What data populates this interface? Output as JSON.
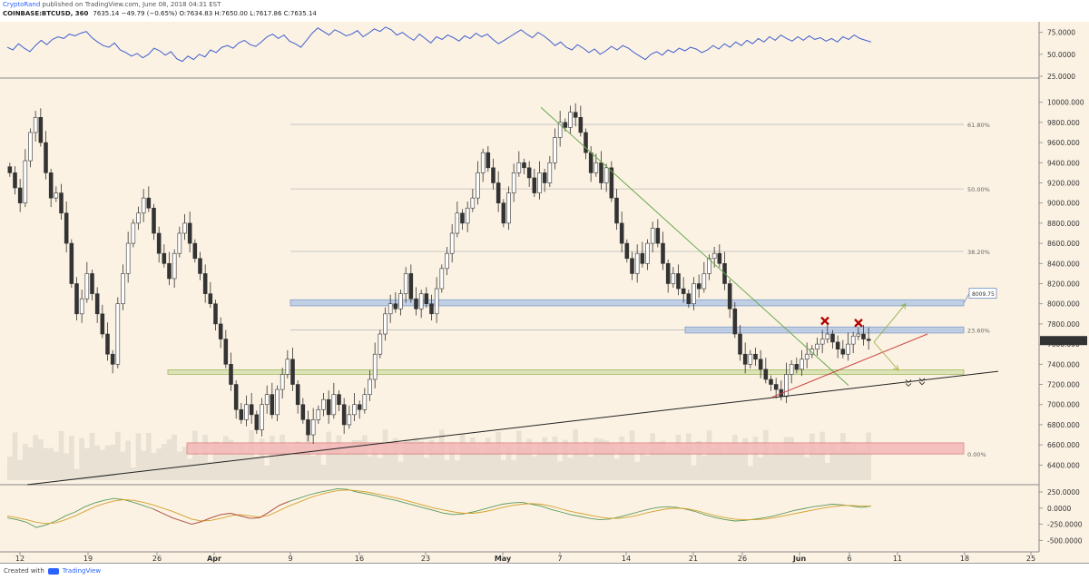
{
  "header": {
    "line1_user": "CryptoRand",
    "line1_rest": "published on TradingView.com, June 08, 2018 04:31 EST",
    "symbol": "COINBASE:BTCUSD, 360",
    "ohlc": "7635.14  −49.79 (−0.65%)  O:7634.83  H:7650.00  L:7617.86  C:7635.14"
  },
  "footer": {
    "created_with": "Created with",
    "brand": "TradingView"
  },
  "colors": {
    "background": "#fbf2e3",
    "rsi_line": "#3f5fcf",
    "candle": "#333333",
    "resistance_zone": "#b8c9e6",
    "support_zone_green": "#d9e0b0",
    "support_zone_red": "#f3b8b8",
    "downtrend_line": "#6aa84f",
    "uptrend_red": "#cc4444",
    "long_trend_black": "#222222",
    "x_marker": "#b40000"
  },
  "chart_data": [
    {
      "panel": "rsi",
      "type": "line",
      "ylim": [
        25,
        85
      ],
      "ticks": [
        "75.0000",
        "50.0000",
        "25.0000"
      ],
      "tick_values": [
        75,
        50,
        25
      ],
      "values": [
        58,
        55,
        62,
        57,
        53,
        60,
        66,
        61,
        67,
        70,
        68,
        73,
        71,
        74,
        76,
        69,
        64,
        60,
        58,
        63,
        55,
        52,
        48,
        51,
        46,
        50,
        57,
        54,
        49,
        53,
        45,
        42,
        48,
        44,
        50,
        47,
        55,
        52,
        58,
        60,
        57,
        63,
        66,
        61,
        59,
        64,
        70,
        73,
        68,
        72,
        65,
        62,
        58,
        66,
        74,
        80,
        76,
        72,
        78,
        75,
        71,
        73,
        77,
        70,
        74,
        79,
        76,
        81,
        78,
        72,
        75,
        70,
        66,
        73,
        68,
        63,
        70,
        67,
        72,
        69,
        65,
        71,
        68,
        74,
        70,
        73,
        67,
        62,
        66,
        70,
        74,
        78,
        73,
        69,
        75,
        71,
        66,
        60,
        64,
        58,
        55,
        61,
        57,
        52,
        56,
        50,
        54,
        59,
        55,
        60,
        57,
        52,
        48,
        44,
        50,
        53,
        49,
        55,
        52,
        57,
        54,
        58,
        56,
        52,
        55,
        60,
        56,
        62,
        58,
        64,
        60,
        66,
        62,
        68,
        64,
        70,
        66,
        72,
        68,
        65,
        70,
        66,
        71,
        67,
        69,
        65,
        68,
        64,
        70,
        67,
        72,
        68,
        66,
        64
      ],
      "x_labels": [
        "12",
        "19",
        "26",
        "Apr",
        "9",
        "16",
        "23",
        "May",
        "7",
        "14",
        "21",
        "26",
        "Jun",
        "6",
        "11",
        "18",
        "25"
      ]
    },
    {
      "panel": "price",
      "type": "candlestick",
      "ylim": [
        6250,
        10150
      ],
      "ticks": [
        "10000.000",
        "9800.000",
        "9600.000",
        "9400.000",
        "9200.000",
        "9000.000",
        "8800.000",
        "8600.000",
        "8400.000",
        "8200.000",
        "8000.000",
        "7800.000",
        "7600.000",
        "7400.000",
        "7200.000",
        "7000.000",
        "6800.000",
        "6600.000",
        "6400.000"
      ],
      "tick_values": [
        10000,
        9800,
        9600,
        9400,
        9200,
        9000,
        8800,
        8600,
        8400,
        8200,
        8000,
        7800,
        7600,
        7400,
        7200,
        7000,
        6800,
        6600,
        6400
      ],
      "closes": [
        9300,
        9150,
        9000,
        9420,
        9700,
        9850,
        9600,
        9300,
        9050,
        9100,
        8900,
        8600,
        8200,
        7900,
        8050,
        8300,
        8100,
        7900,
        7700,
        7500,
        7400,
        8000,
        8300,
        8600,
        8800,
        8900,
        9050,
        8950,
        8700,
        8500,
        8400,
        8250,
        8500,
        8700,
        8800,
        8600,
        8450,
        8300,
        8100,
        8000,
        7800,
        7650,
        7400,
        7200,
        6950,
        6850,
        7000,
        6900,
        6750,
        7000,
        7100,
        6900,
        7150,
        7300,
        7450,
        7200,
        7000,
        6850,
        6700,
        6850,
        6950,
        7050,
        6900,
        7100,
        7000,
        6800,
        6900,
        7000,
        6950,
        7100,
        7250,
        7500,
        7700,
        7900,
        8000,
        7950,
        8100,
        8300,
        8050,
        7950,
        8100,
        8000,
        7900,
        8150,
        8350,
        8500,
        8700,
        8900,
        8800,
        8950,
        9050,
        9300,
        9500,
        9350,
        9200,
        9000,
        8800,
        9100,
        9300,
        9400,
        9350,
        9250,
        9100,
        9300,
        9200,
        9400,
        9650,
        9800,
        9750,
        9900,
        9850,
        9700,
        9500,
        9300,
        9400,
        9200,
        9350,
        9050,
        8800,
        8600,
        8450,
        8300,
        8500,
        8400,
        8600,
        8750,
        8600,
        8400,
        8200,
        8300,
        8150,
        8100,
        8000,
        8200,
        8150,
        8300,
        8450,
        8500,
        8400,
        8200,
        7950,
        7700,
        7500,
        7400,
        7500,
        7450,
        7350,
        7250,
        7200,
        7150,
        7080,
        7300,
        7400,
        7350,
        7450,
        7500,
        7550,
        7600,
        7650,
        7700,
        7620,
        7550,
        7500,
        7600,
        7680,
        7700,
        7650,
        7635
      ],
      "horizontal_levels": [
        {
          "label": "61.80%",
          "value": 9780
        },
        {
          "label": "50.00%",
          "value": 9140
        },
        {
          "label": "38.20%",
          "value": 8520
        },
        {
          "label": "23.60%",
          "value": 7740
        },
        {
          "label": "0.00%",
          "value": 6510
        }
      ],
      "price_flag": "8009.75",
      "zones": [
        {
          "name": "resistance-8000",
          "from": 7980,
          "to": 8040
        },
        {
          "name": "resistance-7740",
          "from": 7710,
          "to": 7770
        },
        {
          "name": "support-7320",
          "from": 7300,
          "to": 7345
        },
        {
          "name": "support-6550",
          "from": 6510,
          "to": 6620
        }
      ]
    },
    {
      "panel": "oscillator",
      "type": "line",
      "ylim": [
        -650,
        320
      ],
      "ticks": [
        "250.0000",
        "0.0000",
        "-250.0000",
        "-500.0000"
      ],
      "tick_values": [
        250,
        0,
        -250,
        -500
      ],
      "series": [
        {
          "values": [
            -150,
            -180,
            -220,
            -300,
            -260,
            -200,
            -120,
            -60,
            20,
            80,
            120,
            150,
            130,
            90,
            40,
            -10,
            -80,
            -150,
            -200,
            -250,
            -210,
            -150,
            -100,
            -80,
            -120,
            -160,
            -150,
            -60,
            40,
            100,
            150,
            200,
            240,
            270,
            300,
            290,
            250,
            220,
            190,
            150,
            120,
            80,
            40,
            0,
            -40,
            -80,
            -100,
            -90,
            -60,
            -20,
            20,
            60,
            80,
            90,
            60,
            30,
            -20,
            -60,
            -100,
            -130,
            -160,
            -180,
            -170,
            -140,
            -100,
            -60,
            -20,
            10,
            20,
            10,
            -20,
            -60,
            -110,
            -150,
            -180,
            -200,
            -190,
            -170,
            -150,
            -120,
            -80,
            -40,
            -10,
            20,
            40,
            60,
            50,
            30,
            10,
            30
          ]
        },
        {
          "values": [
            -120,
            -150,
            -180,
            -220,
            -240,
            -230,
            -180,
            -120,
            -50,
            20,
            70,
            110,
            130,
            120,
            90,
            50,
            0,
            -50,
            -110,
            -170,
            -200,
            -190,
            -160,
            -120,
            -100,
            -120,
            -140,
            -110,
            -40,
            30,
            90,
            150,
            200,
            240,
            270,
            280,
            270,
            250,
            220,
            190,
            160,
            120,
            80,
            40,
            0,
            -30,
            -60,
            -80,
            -80,
            -60,
            -30,
            10,
            40,
            60,
            70,
            60,
            30,
            -10,
            -50,
            -80,
            -110,
            -140,
            -160,
            -160,
            -140,
            -110,
            -70,
            -40,
            -10,
            0,
            -10,
            -40,
            -80,
            -120,
            -150,
            -170,
            -180,
            -180,
            -170,
            -150,
            -120,
            -90,
            -60,
            -30,
            0,
            20,
            40,
            40,
            30,
            30
          ]
        }
      ]
    }
  ]
}
